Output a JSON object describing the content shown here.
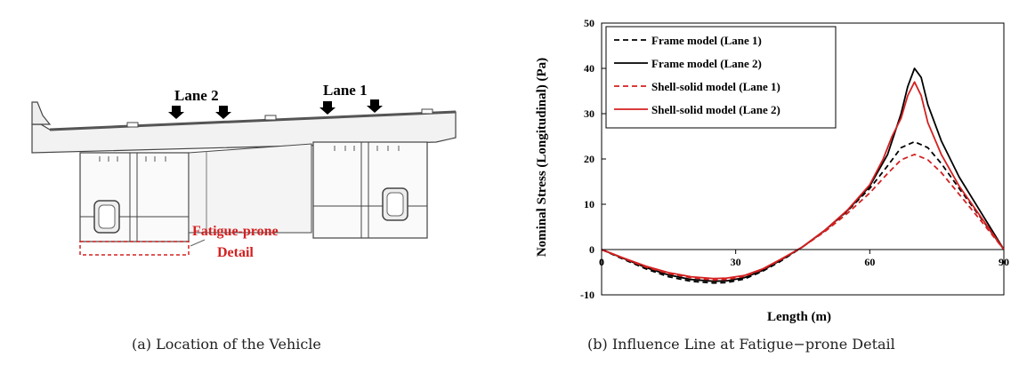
{
  "panel_a": {
    "caption": "(a) Location of the Vehicle",
    "lane_labels": [
      "Lane 2",
      "Lane 1"
    ],
    "detail_label_line1": "Fatigue-prone",
    "detail_label_line2": "Detail",
    "detail_color": "#d42020"
  },
  "panel_b": {
    "caption": "(b) Influence Line at Fatigue−prone Detail"
  },
  "chart_data": {
    "type": "line",
    "title": "",
    "xlabel": "Length (m)",
    "ylabel": "Nominal Stress (Longitudinal) (Pa)",
    "xlim": [
      0,
      90
    ],
    "ylim": [
      -10,
      50
    ],
    "xticks": [
      0,
      30,
      60,
      90
    ],
    "yticks": [
      -10,
      0,
      10,
      20,
      30,
      40,
      50
    ],
    "grid": false,
    "legend_position": "top-left",
    "series": [
      {
        "name": "Frame model (Lane 1)",
        "color": "#000000",
        "dash": "dashed",
        "x": [
          0,
          5,
          10,
          15,
          20,
          25,
          28,
          32,
          36,
          40,
          45,
          50,
          55,
          60,
          64,
          67,
          70,
          73,
          76,
          80,
          85,
          90
        ],
        "y": [
          0,
          -2.2,
          -4.3,
          -6.0,
          -7.0,
          -7.4,
          -7.3,
          -6.5,
          -4.8,
          -2.6,
          0.6,
          4.2,
          8.5,
          13.5,
          18.5,
          22.5,
          23.8,
          22.5,
          19.0,
          13.5,
          6.8,
          0
        ]
      },
      {
        "name": "Frame model (Lane 2)",
        "color": "#000000",
        "dash": "solid",
        "x": [
          0,
          5,
          10,
          15,
          20,
          25,
          28,
          32,
          36,
          40,
          45,
          50,
          55,
          60,
          64,
          67,
          68.5,
          70,
          71.5,
          73,
          76,
          80,
          85,
          90
        ],
        "y": [
          0,
          -2.0,
          -4.0,
          -5.6,
          -6.6,
          -7.0,
          -6.9,
          -6.2,
          -4.6,
          -2.4,
          0.6,
          4.3,
          8.6,
          14.0,
          21.0,
          30.0,
          36.0,
          40.0,
          38.0,
          32.0,
          24.0,
          16.0,
          8.0,
          0
        ]
      },
      {
        "name": "Shell-solid model (Lane 1)",
        "color": "#d42020",
        "dash": "dashed",
        "x": [
          0,
          5,
          10,
          15,
          20,
          25,
          28,
          32,
          36,
          40,
          45,
          50,
          55,
          60,
          64,
          67,
          70,
          73,
          76,
          80,
          85,
          90
        ],
        "y": [
          0,
          -2.0,
          -3.9,
          -5.3,
          -6.2,
          -6.7,
          -6.6,
          -5.9,
          -4.4,
          -2.3,
          0.6,
          4.0,
          8.0,
          12.5,
          16.8,
          19.8,
          21.0,
          19.8,
          17.0,
          12.2,
          6.2,
          0
        ]
      },
      {
        "name": "Shell-solid model (Lane 2)",
        "color": "#d42020",
        "dash": "solid",
        "x": [
          0,
          5,
          10,
          15,
          20,
          25,
          28,
          32,
          36,
          40,
          45,
          50,
          55,
          60,
          63,
          65,
          67,
          68.5,
          70,
          71.5,
          73,
          76,
          80,
          85,
          90
        ],
        "y": [
          0,
          -1.9,
          -3.7,
          -5.1,
          -6.0,
          -6.4,
          -6.3,
          -5.7,
          -4.3,
          -2.2,
          0.6,
          4.3,
          8.7,
          14.3,
          20.0,
          25.0,
          29.0,
          34.0,
          37.0,
          34.0,
          28.0,
          21.0,
          14.0,
          7.0,
          0
        ]
      }
    ]
  }
}
